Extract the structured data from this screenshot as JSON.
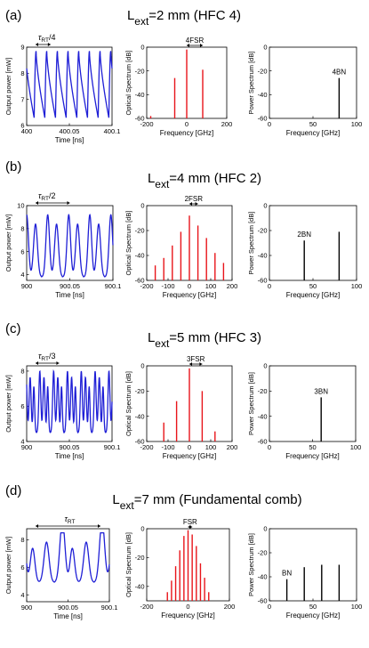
{
  "figure": {
    "rows": [
      {
        "panel": "(a)",
        "title_main": "L",
        "title_sub": "ext",
        "title_rest": "=2 mm (HFC 4)",
        "time": {
          "ylabel": "Output power [mW]",
          "xlabel": "Time [ns]",
          "xticks": [
            "400",
            "400.05",
            "400.1"
          ],
          "yticks": [
            "6",
            "7",
            "8",
            "9"
          ],
          "annotation": {
            "symbol": "τ",
            "sub": "RT",
            "tail": "/4"
          }
        },
        "optical": {
          "ylabel": "Optical Spectrum [dB]",
          "xlabel": "Frequency [GHz]",
          "xticks": [
            "-200",
            "0",
            "200"
          ],
          "yticks": [
            "-60",
            "-40",
            "-20",
            "0"
          ],
          "annotation": "4FSR"
        },
        "power": {
          "ylabel": "Power Spectrum [dB]",
          "xlabel": "Frequency [GHz]",
          "xticks": [
            "0",
            "50",
            "100"
          ],
          "yticks": [
            "-60",
            "-40",
            "-20",
            "0"
          ],
          "annotation": "4BN"
        }
      },
      {
        "panel": "(b)",
        "title_main": "L",
        "title_sub": "ext",
        "title_rest": "=4 mm (HFC 2)",
        "time": {
          "ylabel": "Output power [mW]",
          "xlabel": "Time [ns]",
          "xticks": [
            "900",
            "900.05",
            "900.1"
          ],
          "yticks": [
            "4",
            "6",
            "8",
            "10"
          ],
          "annotation": {
            "symbol": "τ",
            "sub": "RT",
            "tail": "/2"
          }
        },
        "optical": {
          "ylabel": "Optical Spectrum [dB]",
          "xlabel": "Frequency [GHz]",
          "xticks": [
            "-200",
            "-100",
            "0",
            "100",
            "200"
          ],
          "yticks": [
            "-60",
            "-40",
            "-20",
            "0"
          ],
          "annotation": "2FSR"
        },
        "power": {
          "ylabel": "Power Spectrum [dB]",
          "xlabel": "Frequency [GHz]",
          "xticks": [
            "0",
            "50",
            "100"
          ],
          "yticks": [
            "-60",
            "-40",
            "-20",
            "0"
          ],
          "annotation": "2BN"
        }
      },
      {
        "panel": "(c)",
        "title_main": "L",
        "title_sub": "ext",
        "title_rest": "=5 mm (HFC 3)",
        "time": {
          "ylabel": "Output power [mW]",
          "xlabel": "Time [ns]",
          "xticks": [
            "900",
            "900.05",
            "900.1"
          ],
          "yticks": [
            "4",
            "6",
            "8"
          ],
          "annotation": {
            "symbol": "τ",
            "sub": "RT",
            "tail": "/3"
          }
        },
        "optical": {
          "ylabel": "Optical Spectrum [dB]",
          "xlabel": "Frequency [GHz]",
          "xticks": [
            "-200",
            "-100",
            "0",
            "100",
            "200"
          ],
          "yticks": [
            "-60",
            "-40",
            "-20",
            "0"
          ],
          "annotation": "3FSR"
        },
        "power": {
          "ylabel": "Power Spectrum [dB]",
          "xlabel": "Frequency [GHz]",
          "xticks": [
            "0",
            "50",
            "100"
          ],
          "yticks": [
            "-60",
            "-40",
            "-20",
            "0"
          ],
          "annotation": "3BN"
        }
      },
      {
        "panel": "(d)",
        "title_main": "L",
        "title_sub": "ext",
        "title_rest": "=7 mm (Fundamental comb)",
        "time": {
          "ylabel": "Output power [mW]",
          "xlabel": "Time [ns]",
          "xticks": [
            "900",
            "900.05",
            "900.1"
          ],
          "yticks": [
            "4",
            "6",
            "8"
          ],
          "annotation": {
            "symbol": "τ",
            "sub": "RT",
            "tail": ""
          }
        },
        "optical": {
          "ylabel": "Optical Spectrum [dB]",
          "xlabel": "Frequency [GHz]",
          "xticks": [
            "-200",
            "0",
            "200"
          ],
          "yticks": [
            "-40",
            "-20",
            "0"
          ],
          "annotation": "FSR"
        },
        "power": {
          "ylabel": "Power Spectrum [dB]",
          "xlabel": "Frequency [GHz]",
          "xticks": [
            "0",
            "50",
            "100"
          ],
          "yticks": [
            "-60",
            "-40",
            "-20",
            "0"
          ],
          "annotation": "BN"
        }
      }
    ]
  },
  "colors": {
    "time_trace": "#1f1fd6",
    "optical_lines": "#e8141a",
    "power_lines": "#000000",
    "axes": "#000000"
  },
  "chart_data": [
    {
      "type": "line",
      "row": "(a)",
      "series_type": "time trace",
      "xlabel": "Time [ns]",
      "ylabel": "Output power [mW]",
      "xlim": [
        400,
        400.1
      ],
      "ylim": [
        6,
        9
      ],
      "waveform": {
        "period_ns": 0.0125,
        "min": 6.3,
        "max": 8.85,
        "shape": "sawtooth"
      }
    },
    {
      "type": "bar",
      "row": "(a)",
      "series_type": "optical spectrum",
      "xlabel": "Frequency [GHz]",
      "ylabel": "Optical Spectrum [dB]",
      "xlim": [
        -200,
        200
      ],
      "ylim": [
        -60,
        0
      ],
      "x": [
        -180,
        -60,
        0,
        80
      ],
      "values": [
        -58,
        -26,
        -2,
        -19
      ]
    },
    {
      "type": "bar",
      "row": "(a)",
      "series_type": "power spectrum",
      "xlabel": "Frequency [GHz]",
      "ylabel": "Power Spectrum [dB]",
      "xlim": [
        0,
        100
      ],
      "ylim": [
        -60,
        0
      ],
      "x": [
        80
      ],
      "values": [
        -26
      ]
    },
    {
      "type": "line",
      "row": "(b)",
      "series_type": "time trace",
      "xlabel": "Time [ns]",
      "ylabel": "Output power [mW]",
      "xlim": [
        900,
        900.1
      ],
      "ylim": [
        3.5,
        10
      ],
      "waveform": {
        "period_ns": 0.0244,
        "min": 3.8,
        "max": 9.2,
        "shape": "double-peak"
      }
    },
    {
      "type": "bar",
      "row": "(b)",
      "series_type": "optical spectrum",
      "xlabel": "Frequency [GHz]",
      "ylabel": "Optical Spectrum [dB]",
      "xlim": [
        -200,
        200
      ],
      "ylim": [
        -60,
        0
      ],
      "x": [
        -160,
        -120,
        -80,
        -40,
        0,
        40,
        80,
        120,
        160
      ],
      "values": [
        -48,
        -42,
        -32,
        -21,
        -8,
        -16,
        -26,
        -38,
        -46
      ]
    },
    {
      "type": "bar",
      "row": "(b)",
      "series_type": "power spectrum",
      "xlabel": "Frequency [GHz]",
      "ylabel": "Power Spectrum [dB]",
      "xlim": [
        0,
        100
      ],
      "ylim": [
        -60,
        0
      ],
      "x": [
        40,
        80
      ],
      "values": [
        -28,
        -21
      ]
    },
    {
      "type": "line",
      "row": "(c)",
      "series_type": "time trace",
      "xlabel": "Time [ns]",
      "ylabel": "Output power [mW]",
      "xlim": [
        900,
        900.1
      ],
      "ylim": [
        4,
        8.3
      ],
      "waveform": {
        "period_ns": 0.0162,
        "min": 4.5,
        "max": 8.0,
        "shape": "triple-peak"
      }
    },
    {
      "type": "bar",
      "row": "(c)",
      "series_type": "optical spectrum",
      "xlabel": "Frequency [GHz]",
      "ylabel": "Optical Spectrum [dB]",
      "xlim": [
        -200,
        200
      ],
      "ylim": [
        -60,
        0
      ],
      "x": [
        -120,
        -60,
        0,
        60,
        120
      ],
      "values": [
        -45,
        -28,
        -2,
        -20,
        -52
      ]
    },
    {
      "type": "bar",
      "row": "(c)",
      "series_type": "power spectrum",
      "xlabel": "Frequency [GHz]",
      "ylabel": "Power Spectrum [dB]",
      "xlim": [
        0,
        100
      ],
      "ylim": [
        -60,
        0
      ],
      "x": [
        60
      ],
      "values": [
        -25
      ]
    },
    {
      "type": "line",
      "row": "(d)",
      "series_type": "time trace",
      "xlabel": "Time [ns]",
      "ylabel": "Output power [mW]",
      "xlim": [
        900,
        900.1
      ],
      "ylim": [
        3.5,
        8.8
      ],
      "waveform": {
        "period_ns": 0.048,
        "min": 4.0,
        "max": 8.5,
        "shape": "fundamental"
      }
    },
    {
      "type": "bar",
      "row": "(d)",
      "series_type": "optical spectrum",
      "xlabel": "Frequency [GHz]",
      "ylabel": "Optical Spectrum [dB]",
      "xlim": [
        -200,
        200
      ],
      "ylim": [
        -50,
        0
      ],
      "x": [
        -100,
        -80,
        -60,
        -40,
        -20,
        0,
        20,
        40,
        60,
        80,
        100
      ],
      "values": [
        -44,
        -36,
        -26,
        -15,
        -5,
        -1,
        -4,
        -12,
        -24,
        -34,
        -44
      ]
    },
    {
      "type": "bar",
      "row": "(d)",
      "series_type": "power spectrum",
      "xlabel": "Frequency [GHz]",
      "ylabel": "Power Spectrum [dB]",
      "xlim": [
        0,
        100
      ],
      "ylim": [
        -60,
        0
      ],
      "x": [
        20,
        40,
        60,
        80
      ],
      "values": [
        -42,
        -32,
        -30,
        -30
      ]
    }
  ]
}
